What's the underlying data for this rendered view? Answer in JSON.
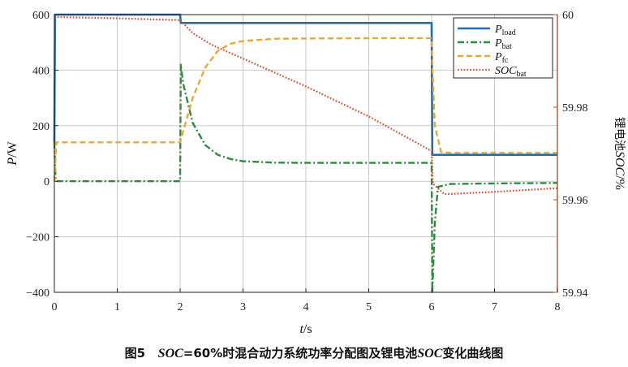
{
  "caption": {
    "fig_label": "图5",
    "soc_a": "SOC",
    "mid": "=60%时混合动力系统功率分配图及锂电池",
    "soc_b": "SOC",
    "tail": "变化曲线图"
  },
  "colors": {
    "load": "#1f6fb0",
    "bat": "#2e8b3e",
    "fc": "#e8a838",
    "soc": "#d44a2a",
    "right_axis": "#b3542c"
  },
  "chart_data": {
    "type": "line",
    "xlabel": {
      "sym": "t",
      "unit": "/s"
    },
    "ylabel_left": {
      "sym": "P",
      "unit": "/W"
    },
    "ylabel_right": {
      "prefix": "锂电池",
      "sym": "SOC",
      "unit": "/%"
    },
    "xlim": [
      0,
      8
    ],
    "ylim_left": [
      -400,
      600
    ],
    "ylim_right": [
      59.94,
      60
    ],
    "x_ticks": [
      "0",
      "1",
      "2",
      "3",
      "4",
      "5",
      "6",
      "7",
      "8"
    ],
    "y_ticks_left": [
      "600",
      "400",
      "200",
      "0",
      "−200",
      "−400"
    ],
    "y_ticks_right": [
      "60",
      "59.98",
      "59.96",
      "59.94"
    ],
    "grid": true,
    "legend_position": "top-right",
    "series": [
      {
        "key": "load",
        "legend_sym": "P",
        "legend_sub": "load",
        "axis": "left",
        "style": "solid",
        "x": [
          0,
          0.01,
          2,
          2.01,
          6,
          6.01,
          8
        ],
        "y": [
          140,
          600,
          600,
          570,
          570,
          95,
          95
        ]
      },
      {
        "key": "bat",
        "legend_sym": "P",
        "legend_sub": "bat",
        "axis": "left",
        "style": "dashdot",
        "x": [
          0,
          0.02,
          0.05,
          2,
          2.01,
          2.05,
          2.2,
          2.4,
          2.6,
          2.8,
          3.0,
          3.5,
          4,
          5,
          6,
          6.01,
          6.05,
          6.1,
          6.3,
          7,
          8
        ],
        "y": [
          140,
          5,
          0,
          0,
          420,
          350,
          210,
          130,
          95,
          80,
          72,
          67,
          66,
          66,
          66,
          -405,
          -150,
          -20,
          -10,
          -8,
          -6
        ]
      },
      {
        "key": "fc",
        "legend_sym": "P",
        "legend_sub": "fc",
        "axis": "left",
        "style": "dashed",
        "x": [
          0,
          0.03,
          2,
          2.01,
          2.2,
          2.4,
          2.6,
          2.8,
          3.0,
          3.5,
          4,
          5,
          6,
          6.01,
          6.05,
          6.15,
          6.3,
          7,
          8
        ],
        "y": [
          0,
          140,
          140,
          150,
          300,
          410,
          470,
          495,
          505,
          513,
          514,
          515,
          515,
          420,
          200,
          105,
          102,
          102,
          102
        ]
      },
      {
        "key": "soc",
        "legend_sym": "SOC",
        "legend_sub": "bat",
        "axis": "right",
        "style": "dotted",
        "x": [
          0,
          1,
          2,
          2.2,
          2.5,
          3,
          4,
          5,
          6,
          6.02,
          6.2,
          7,
          8
        ],
        "y": [
          59.9995,
          59.9992,
          59.9988,
          59.996,
          59.9935,
          59.9905,
          59.9845,
          59.978,
          59.9705,
          59.9635,
          59.9612,
          59.9617,
          59.9625
        ]
      }
    ]
  }
}
